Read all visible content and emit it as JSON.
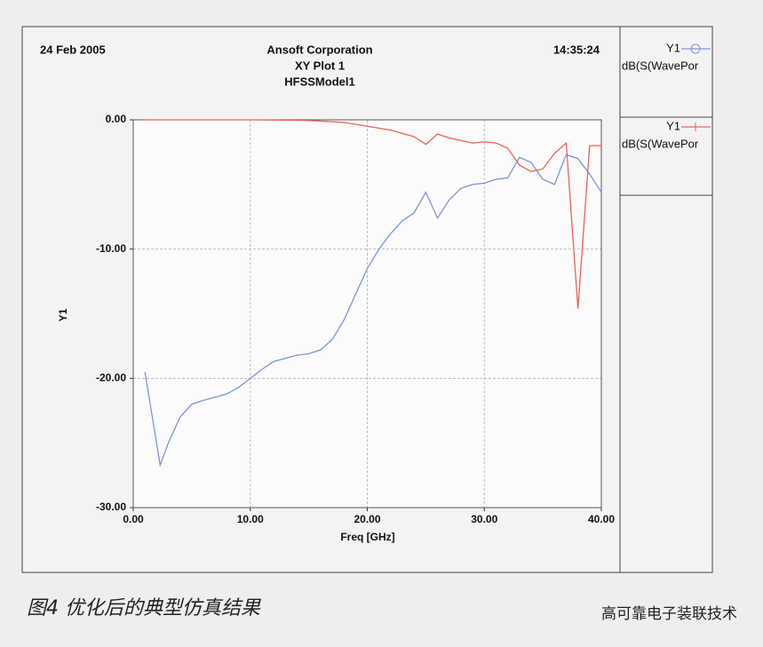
{
  "chart_data": {
    "type": "line",
    "date": "24 Feb 2005",
    "title": "Ansoft Corporation",
    "subtitle": "XY Plot 1",
    "model": "HFSSModel1",
    "time": "14:35:24",
    "xlabel": "Freq [GHz]",
    "ylabel": "Y1",
    "xlim": [
      0,
      40
    ],
    "ylim": [
      -30,
      0
    ],
    "xticks": [
      {
        "value": 0,
        "label": "0.00"
      },
      {
        "value": 10,
        "label": "10.00"
      },
      {
        "value": 20,
        "label": "20.00"
      },
      {
        "value": 30,
        "label": "30.00"
      },
      {
        "value": 40,
        "label": "40.00"
      }
    ],
    "yticks": [
      {
        "value": 0,
        "label": "0.00"
      },
      {
        "value": -10,
        "label": "-10.00"
      },
      {
        "value": -20,
        "label": "-20.00"
      },
      {
        "value": -30,
        "label": "-30.00"
      }
    ],
    "grid": true,
    "series": [
      {
        "name": "dB(S(WavePor",
        "color": "#7b95d8",
        "marker": "circle",
        "x": [
          1,
          2.3,
          3,
          4,
          5,
          6,
          8,
          9,
          10,
          11,
          12,
          14,
          15,
          16,
          17,
          18,
          19,
          20,
          21,
          22,
          23,
          24,
          25,
          26,
          27,
          28,
          29,
          30,
          31,
          32,
          33,
          34,
          35,
          36,
          37,
          38,
          39,
          40
        ],
        "values": [
          -19.5,
          -26.7,
          -25,
          -23,
          -22,
          -21.7,
          -21.2,
          -20.7,
          -20,
          -19.3,
          -18.7,
          -18.2,
          -18.1,
          -17.8,
          -17,
          -15.5,
          -13.5,
          -11.5,
          -10,
          -8.8,
          -7.8,
          -7.2,
          -5.6,
          -7.6,
          -6.2,
          -5.3,
          -5,
          -4.9,
          -4.6,
          -4.5,
          -2.9,
          -3.3,
          -4.6,
          -5,
          -2.7,
          -3,
          -4.2,
          -5.6
        ]
      },
      {
        "name": "dB(S(WavePor",
        "color": "#e8645a",
        "marker": "plus",
        "x": [
          1,
          5,
          10,
          15,
          18,
          20,
          22,
          24,
          25,
          26,
          27,
          28,
          29,
          30,
          31,
          32,
          33,
          34,
          35,
          36,
          37,
          38,
          39,
          40
        ],
        "values": [
          0,
          0,
          0,
          -0.05,
          -0.2,
          -0.5,
          -0.8,
          -1.3,
          -1.9,
          -1.1,
          -1.4,
          -1.6,
          -1.8,
          -1.7,
          -1.8,
          -2.2,
          -3.5,
          -4,
          -3.8,
          -2.6,
          -1.8,
          -14.6,
          -2,
          -2
        ]
      }
    ]
  },
  "caption": "图4 优化后的典型仿真结果",
  "source": "高可靠电子装联技术"
}
